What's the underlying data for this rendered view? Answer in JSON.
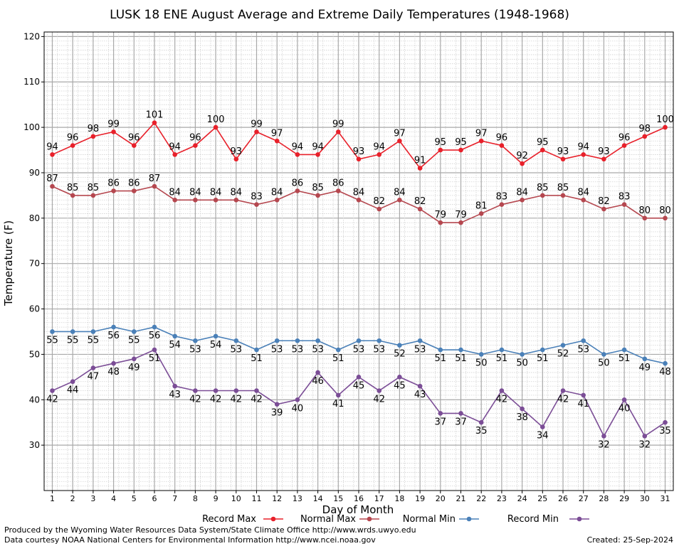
{
  "chart_data": {
    "type": "line",
    "title": "LUSK 18 ENE August Average and Extreme Daily Temperatures (1948-1968)",
    "xlabel": "Day of Month",
    "ylabel": "Temperature (F)",
    "xlim": [
      0.6,
      31.4
    ],
    "ylim": [
      20,
      121
    ],
    "yticks": [
      30,
      40,
      50,
      60,
      70,
      80,
      90,
      100,
      110,
      120
    ],
    "x": [
      1,
      2,
      3,
      4,
      5,
      6,
      7,
      8,
      9,
      10,
      11,
      12,
      13,
      14,
      15,
      16,
      17,
      18,
      19,
      20,
      21,
      22,
      23,
      24,
      25,
      26,
      27,
      28,
      29,
      30,
      31
    ],
    "grid": true,
    "legend_position": "bottom",
    "series": [
      {
        "name": "Record Max",
        "color": "#e8202a",
        "label_position": "above",
        "values": [
          94,
          96,
          98,
          99,
          96,
          101,
          94,
          96,
          100,
          93,
          99,
          97,
          94,
          94,
          99,
          93,
          94,
          97,
          91,
          95,
          95,
          97,
          96,
          92,
          95,
          93,
          94,
          93,
          96,
          98,
          100
        ]
      },
      {
        "name": "Normal Max",
        "color": "#b5474f",
        "label_position": "above",
        "values": [
          87,
          85,
          85,
          86,
          86,
          87,
          84,
          84,
          84,
          84,
          83,
          84,
          86,
          85,
          86,
          84,
          82,
          84,
          82,
          79,
          79,
          81,
          83,
          84,
          85,
          85,
          84,
          82,
          83,
          80,
          80
        ]
      },
      {
        "name": "Normal Min",
        "color": "#4a80b8",
        "label_position": "below",
        "values": [
          55,
          55,
          55,
          56,
          55,
          56,
          54,
          53,
          54,
          53,
          51,
          53,
          53,
          53,
          51,
          53,
          53,
          52,
          53,
          51,
          51,
          50,
          51,
          50,
          51,
          52,
          53,
          50,
          51,
          49,
          48
        ]
      },
      {
        "name": "Record Min",
        "color": "#7b4d96",
        "label_position": "below",
        "values": [
          42,
          44,
          47,
          48,
          49,
          51,
          43,
          42,
          42,
          42,
          42,
          39,
          40,
          46,
          41,
          45,
          42,
          45,
          43,
          37,
          37,
          35,
          42,
          38,
          34,
          42,
          41,
          32,
          40,
          32,
          35
        ]
      }
    ]
  },
  "footer": {
    "credit_line_1": "Produced by the Wyoming Water Resources Data System/State Climate Office http://www.wrds.uwyo.edu",
    "credit_line_2": "Data courtesy NOAA National Centers for Environmental Information http://www.ncei.noaa.gov",
    "created": "Created:  25-Sep-2024"
  }
}
